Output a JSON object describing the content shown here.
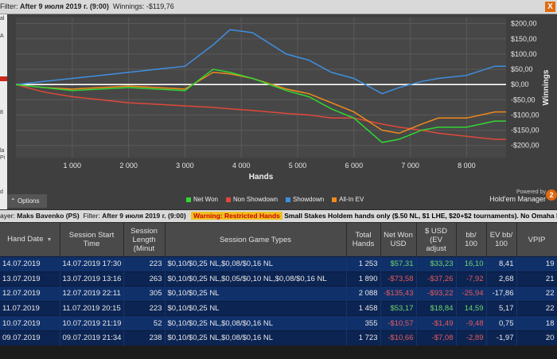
{
  "filter": {
    "prefix": "Filter: ",
    "value": "After 9 июля 2019 г. (9:00)",
    "winnings_label": "Winnings:",
    "winnings_value": "-$119,76",
    "close_label": "X"
  },
  "left_strip": {
    "chars": [
      "al",
      "A",
      "8",
      "la",
      "Pi",
      "d"
    ]
  },
  "chart": {
    "xlabel": "Hands",
    "ylabel": "Winnings",
    "options_label": "Options",
    "powered_by": "Powered by",
    "brand": "Hold'em Manager",
    "brand_badge": "2",
    "colors": {
      "net_won": "#33d633",
      "non_showdown": "#e0483a",
      "showdown": "#3f8fe0",
      "all_in_ev": "#f08a1c"
    },
    "legend": [
      {
        "label": "Net Won",
        "color": "#33d633"
      },
      {
        "label": "Non Showdown",
        "color": "#e0483a"
      },
      {
        "label": "Showdown",
        "color": "#3f8fe0"
      },
      {
        "label": "All-In EV",
        "color": "#f08a1c"
      }
    ]
  },
  "chart_data": {
    "type": "line",
    "title": "",
    "xlabel": "Hands",
    "ylabel": "Winnings",
    "xlim": [
      0,
      8700
    ],
    "ylim": [
      -240,
      220
    ],
    "x_ticks": [
      1000,
      2000,
      3000,
      4000,
      5000,
      6000,
      7000,
      8000
    ],
    "x_tick_labels": [
      "1 000",
      "2 000",
      "3 000",
      "4 000",
      "5 000",
      "6 000",
      "7 000",
      "8 000"
    ],
    "y_ticks": [
      200,
      150,
      100,
      50,
      0,
      -50,
      -100,
      -150,
      -200
    ],
    "y_tick_labels": [
      "$200,00",
      "$150,00",
      "$100,00",
      "$50,00",
      "$0,00",
      "-$50,00",
      "-$100,00",
      "-$150,00",
      "-$200,00"
    ],
    "x": [
      0,
      500,
      1000,
      1500,
      2000,
      2500,
      3000,
      3500,
      3800,
      4200,
      4800,
      5200,
      5600,
      6000,
      6500,
      6800,
      7200,
      7500,
      8000,
      8500,
      8700
    ],
    "series": [
      {
        "name": "Net Won",
        "values": [
          0,
          -10,
          -20,
          -15,
          -10,
          -15,
          -20,
          50,
          40,
          20,
          -20,
          -40,
          -80,
          -110,
          -190,
          -180,
          -150,
          -140,
          -140,
          -120,
          -120
        ]
      },
      {
        "name": "Non Showdown",
        "values": [
          0,
          -25,
          -40,
          -50,
          -60,
          -65,
          -70,
          -75,
          -80,
          -85,
          -95,
          -100,
          -110,
          -110,
          -130,
          -140,
          -150,
          -160,
          -170,
          -180,
          -180
        ]
      },
      {
        "name": "Showdown",
        "values": [
          0,
          10,
          20,
          30,
          40,
          50,
          60,
          130,
          180,
          170,
          100,
          80,
          40,
          20,
          -30,
          -10,
          10,
          20,
          30,
          60,
          60
        ]
      },
      {
        "name": "All-In EV",
        "values": [
          0,
          -10,
          -15,
          -10,
          -5,
          -10,
          -15,
          40,
          35,
          20,
          -15,
          -30,
          -60,
          -90,
          -150,
          -160,
          -130,
          -110,
          -110,
          -90,
          -90
        ]
      }
    ]
  },
  "infobar": {
    "player_prefix": "ayer:",
    "player_name": "Maks Bavenko (PS)",
    "filter_prefix": "Filter:",
    "filter_value": "After 9 июля 2019 г. (9:00)",
    "warning": "Warning: Restricted Hands",
    "warning_tail": "Small Stakes Holdem hands only ($.50 NL, $1 LHE, $20+$2 tournaments).  No Omaha ha"
  },
  "table": {
    "headers": [
      "Hand Date",
      "Session Start Time",
      "Session Length (Minut",
      "Session Game Types",
      "Total Hands",
      "Net Won USD",
      "$ USD (EV adjust",
      "bb/ 100",
      "EV bb/ 100",
      "VPIP"
    ],
    "rows": [
      [
        "14.07.2019",
        "14.07.2019 17:30",
        "223",
        "$0,10/$0,25 NL,$0,08/$0,16 NL",
        "1 253",
        "$57,31",
        "$33,23",
        "16,10",
        "8,41",
        "19"
      ],
      [
        "13.07.2019",
        "13.07.2019 13:16",
        "263",
        "$0,10/$0,25 NL,$0,05/$0,10 NL,$0,08/$0,16 NL",
        "1 890",
        "-$73,58",
        "-$37,26",
        "-7,92",
        "2,68",
        "21"
      ],
      [
        "12.07.2019",
        "12.07.2019 22:11",
        "305",
        "$0,10/$0,25 NL",
        "2 088",
        "-$135,43",
        "-$93,22",
        "-25,94",
        "-17,86",
        "22"
      ],
      [
        "11.07.2019",
        "11.07.2019 20:15",
        "223",
        "$0,10/$0,25 NL",
        "1 458",
        "$53,17",
        "$18,84",
        "14,59",
        "5,17",
        "22"
      ],
      [
        "10.07.2019",
        "10.07.2019 21:19",
        "52",
        "$0,10/$0,25 NL,$0,08/$0,16 NL",
        "355",
        "-$10,57",
        "-$1,49",
        "-9,48",
        "0,75",
        "18"
      ],
      [
        "09.07.2019",
        "09.07.2019 21:34",
        "238",
        "$0,10/$0,25 NL,$0,08/$0,16 NL",
        "1 723",
        "-$10,66",
        "-$7,08",
        "-2,89",
        "-1,97",
        "20"
      ]
    ]
  }
}
